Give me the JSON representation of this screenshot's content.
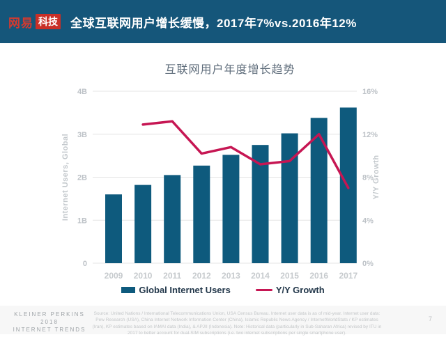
{
  "header": {
    "logo_netease": "网易",
    "logo_tech": "科技",
    "title": "全球互联网用户增长缓慢，2017年7%vs.2016年12%",
    "bg_color": "#15567A",
    "logo_red": "#C92F27"
  },
  "chart_data": {
    "type": "bar+line",
    "title": "互联网用户年度增长趋势",
    "categories": [
      "2009",
      "2010",
      "2011",
      "2012",
      "2013",
      "2014",
      "2015",
      "2016",
      "2017"
    ],
    "series": [
      {
        "name": "Global Internet Users",
        "type": "bar",
        "axis": "left",
        "color": "#0E5A7D",
        "values": [
          1.6,
          1.82,
          2.05,
          2.27,
          2.52,
          2.75,
          3.02,
          3.38,
          3.62
        ]
      },
      {
        "name": "Y/Y Growth",
        "type": "line",
        "axis": "right",
        "color": "#C61653",
        "values": [
          null,
          12.9,
          13.2,
          10.2,
          10.8,
          9.2,
          9.5,
          12,
          7
        ]
      }
    ],
    "left_axis": {
      "label": "Internet Users, Global",
      "ticks": [
        "0",
        "1B",
        "2B",
        "3B",
        "4B"
      ],
      "min": 0,
      "max": 4
    },
    "right_axis": {
      "label": "Y/Y Growth",
      "ticks": [
        "0%",
        "4%",
        "8%",
        "12%",
        "16%"
      ],
      "min": 0,
      "max": 16
    },
    "grid": true,
    "legend_position": "bottom"
  },
  "legend": [
    {
      "label": "Global Internet Users",
      "swatch": "rect",
      "color": "#0E5A7D"
    },
    {
      "label": "Y/Y Growth",
      "swatch": "line",
      "color": "#C61653"
    }
  ],
  "footer": {
    "brand_line1": "KLEINER PERKINS",
    "brand_line2": "2018",
    "brand_line3": "INTERNET TRENDS",
    "source": "Source: United Nations / International Telecommunications Union, USA Census Bureau. Internet user data is as of mid-year. Internet user data: Pew Research (USA), China Internet Network Information Center (China), Islamic Republic News Agency / InternetWorldStats / KP estimates (Iran), KP estimates based on IAMAI data (India), & APJII (Indonesia). Note: Historical data (particularly in Sub-Saharan Africa) revised by ITU in 2017 to better account for dual-SIM subscriptions (i.e. two internet subscriptions per single smartphone user).",
    "page_number": "7"
  }
}
